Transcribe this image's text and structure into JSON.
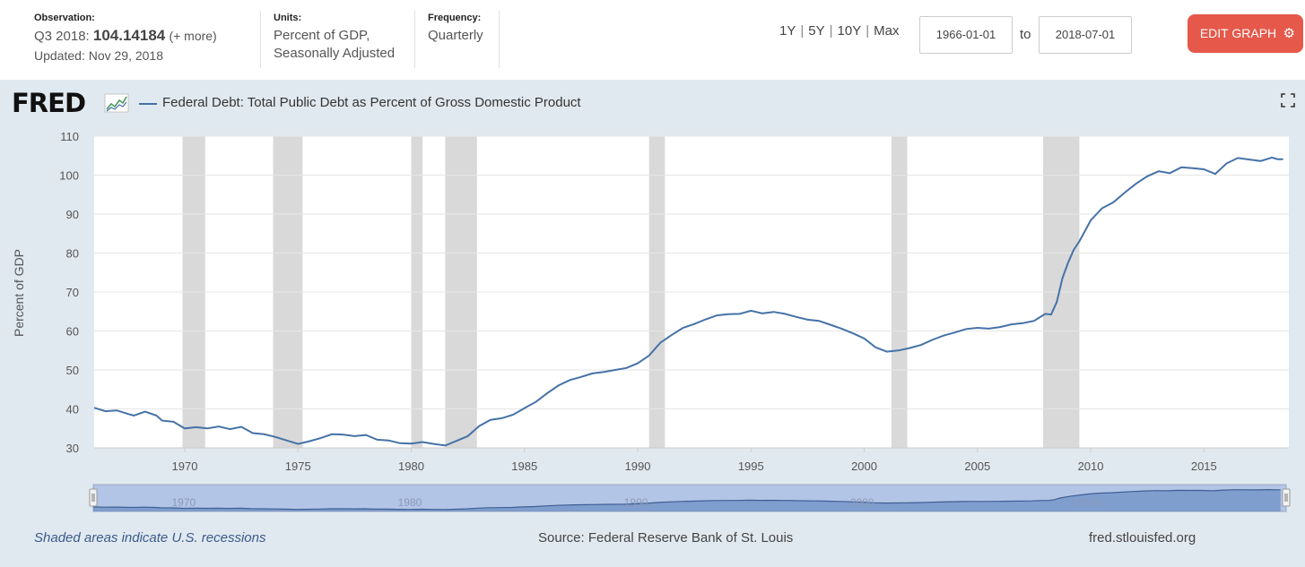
{
  "header": {
    "observation_label": "Observation:",
    "observation_period": "Q3 2018:",
    "observation_value": "104.14184",
    "observation_more": "(+ more)",
    "updated": "Updated: Nov 29, 2018",
    "units_label": "Units:",
    "units_line1": "Percent of GDP,",
    "units_line2": "Seasonally Adjusted",
    "frequency_label": "Frequency:",
    "frequency_value": "Quarterly",
    "range_buttons": [
      "1Y",
      "5Y",
      "10Y",
      "Max"
    ],
    "range_sep": "|",
    "date_from": "1966-01-01",
    "date_to_word": "to",
    "date_to": "2018-07-01",
    "edit_label": "EDIT GRAPH",
    "edit_icon": "gear-icon"
  },
  "brand": {
    "logo_text": "FRED"
  },
  "footer": {
    "note": "Shaded areas indicate U.S. recessions",
    "source": "Source: Federal Reserve Bank of St. Louis",
    "website": "fred.stlouisfed.org"
  },
  "colors": {
    "line": "#4572a7",
    "recession": "#d9d9d9",
    "panel": "#e1e9f0",
    "button": "#e5584a"
  },
  "chart_data": {
    "type": "line",
    "title": "Federal Debt: Total Public Debt as Percent of Gross Domestic Product",
    "ylabel": "Percent of GDP",
    "xlabel": "",
    "xlim": [
      1966.0,
      2018.75
    ],
    "ylim": [
      30,
      110
    ],
    "y_ticks": [
      30,
      40,
      50,
      60,
      70,
      80,
      90,
      100,
      110
    ],
    "x_ticks": [
      1970,
      1975,
      1980,
      1985,
      1990,
      1995,
      2000,
      2005,
      2010,
      2015
    ],
    "navigator_ticks": [
      1970,
      1980,
      1990,
      2000,
      2010
    ],
    "grid": true,
    "recessions": [
      [
        1969.9,
        1970.9
      ],
      [
        1973.9,
        1975.2
      ],
      [
        1980.0,
        1980.5
      ],
      [
        1981.5,
        1982.9
      ],
      [
        1990.5,
        1991.2
      ],
      [
        2001.2,
        2001.9
      ],
      [
        2007.9,
        2009.5
      ]
    ],
    "series": [
      {
        "name": "Federal Debt: Total Public Debt as Percent of Gross Domestic Product",
        "x": [
          1966.0,
          1966.5,
          1967.0,
          1967.5,
          1967.75,
          1968.25,
          1968.75,
          1969.0,
          1969.5,
          1970.0,
          1970.5,
          1971.0,
          1971.5,
          1972.0,
          1972.5,
          1973.0,
          1973.5,
          1974.0,
          1974.5,
          1975.0,
          1975.5,
          1976.0,
          1976.5,
          1977.0,
          1977.5,
          1978.0,
          1978.5,
          1979.0,
          1979.5,
          1980.0,
          1980.5,
          1981.0,
          1981.5,
          1982.0,
          1982.5,
          1983.0,
          1983.5,
          1984.0,
          1984.5,
          1985.0,
          1985.5,
          1986.0,
          1986.5,
          1987.0,
          1987.5,
          1988.0,
          1988.5,
          1989.0,
          1989.5,
          1990.0,
          1990.5,
          1991.0,
          1991.5,
          1992.0,
          1992.5,
          1993.0,
          1993.5,
          1994.0,
          1994.5,
          1995.0,
          1995.5,
          1996.0,
          1996.5,
          1997.0,
          1997.5,
          1998.0,
          1998.5,
          1999.0,
          1999.5,
          2000.0,
          2000.5,
          2001.0,
          2001.5,
          2002.0,
          2002.5,
          2003.0,
          2003.5,
          2004.0,
          2004.5,
          2005.0,
          2005.5,
          2006.0,
          2006.5,
          2007.0,
          2007.5,
          2008.0,
          2008.25,
          2008.5,
          2008.75,
          2009.0,
          2009.25,
          2009.5,
          2010.0,
          2010.5,
          2011.0,
          2011.5,
          2012.0,
          2012.5,
          2013.0,
          2013.5,
          2014.0,
          2014.5,
          2015.0,
          2015.5,
          2016.0,
          2016.5,
          2017.0,
          2017.5,
          2018.0,
          2018.25,
          2018.5
        ],
        "values": [
          40.3,
          39.4,
          39.6,
          38.7,
          38.3,
          39.3,
          38.3,
          37.0,
          36.7,
          35.0,
          35.3,
          35.0,
          35.5,
          34.8,
          35.4,
          33.8,
          33.5,
          32.8,
          31.9,
          31.0,
          31.7,
          32.5,
          33.5,
          33.4,
          33.0,
          33.3,
          32.1,
          31.9,
          31.2,
          31.1,
          31.5,
          31.0,
          30.6,
          31.8,
          33.0,
          35.6,
          37.2,
          37.6,
          38.5,
          40.2,
          41.8,
          44.0,
          46.0,
          47.4,
          48.2,
          49.1,
          49.5,
          50.0,
          50.5,
          51.7,
          53.7,
          57.0,
          59.0,
          60.8,
          61.8,
          63.0,
          64.0,
          64.3,
          64.4,
          65.2,
          64.5,
          64.9,
          64.4,
          63.6,
          62.9,
          62.6,
          61.6,
          60.6,
          59.4,
          58.1,
          55.8,
          54.7,
          55.0,
          55.6,
          56.4,
          57.7,
          58.8,
          59.6,
          60.5,
          60.8,
          60.6,
          61.0,
          61.7,
          62.0,
          62.6,
          64.4,
          64.2,
          67.4,
          73.5,
          77.5,
          80.8,
          83.0,
          88.4,
          91.5,
          93.0,
          95.5,
          97.8,
          99.7,
          101.0,
          100.5,
          102.0,
          101.8,
          101.5,
          100.3,
          103.0,
          104.4,
          104.0,
          103.6,
          104.5,
          104.1,
          104.1
        ]
      }
    ]
  }
}
